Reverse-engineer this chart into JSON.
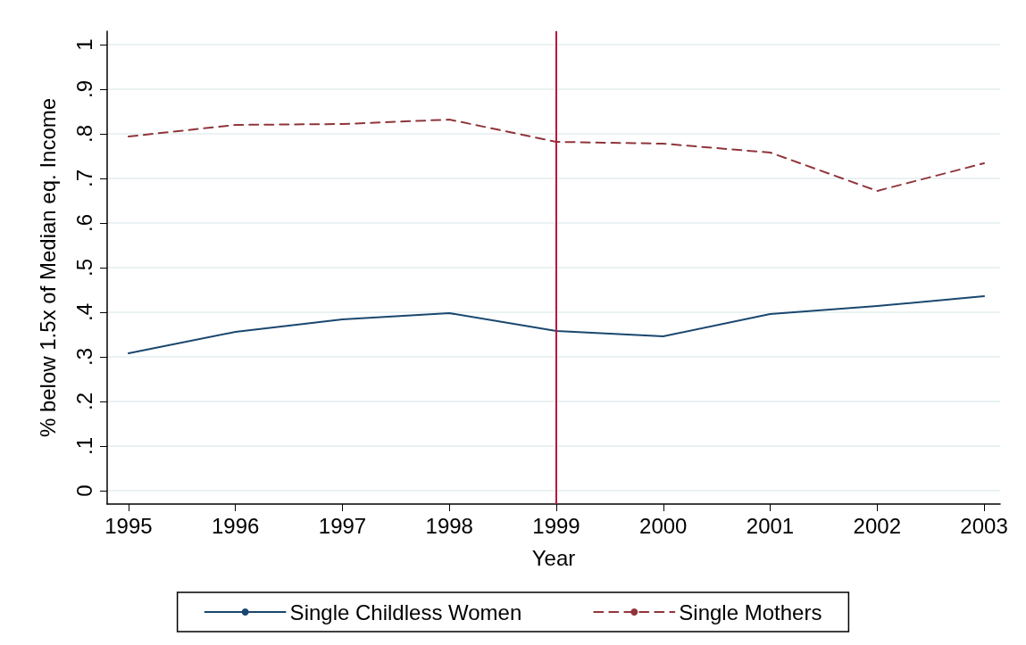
{
  "chart_data": {
    "type": "line",
    "xlabel": "Year",
    "ylabel": "% below 1.5x of Median eq. Income",
    "x": [
      1995,
      1996,
      1997,
      1998,
      1999,
      2000,
      2001,
      2002,
      2003
    ],
    "series": [
      {
        "name": "Single Childless Women",
        "color": "#1a476f",
        "line_style": "solid",
        "values": [
          0.308,
          0.356,
          0.384,
          0.398,
          0.358,
          0.346,
          0.396,
          0.414,
          0.436
        ]
      },
      {
        "name": "Single Mothers",
        "color": "#90353b",
        "line_style": "dashed",
        "values": [
          0.794,
          0.82,
          0.822,
          0.832,
          0.782,
          0.778,
          0.758,
          0.672,
          0.734
        ]
      }
    ],
    "xlim": [
      1994.8,
      2003.15
    ],
    "xticks": [
      1995,
      1996,
      1997,
      1998,
      1999,
      2000,
      2001,
      2002,
      2003
    ],
    "ylim": [
      -0.03,
      1.03
    ],
    "yticks": [
      {
        "value": 0,
        "label": "0"
      },
      {
        "value": 0.1,
        "label": ".1"
      },
      {
        "value": 0.2,
        "label": ".2"
      },
      {
        "value": 0.3,
        "label": ".3"
      },
      {
        "value": 0.4,
        "label": ".4"
      },
      {
        "value": 0.5,
        "label": ".5"
      },
      {
        "value": 0.6,
        "label": ".6"
      },
      {
        "value": 0.7,
        "label": ".7"
      },
      {
        "value": 0.8,
        "label": ".8"
      },
      {
        "value": 0.9,
        "label": ".9"
      },
      {
        "value": 1,
        "label": "1"
      }
    ],
    "ref_lines": [
      {
        "axis": "x",
        "value": 1999,
        "color": "#c0103a"
      }
    ],
    "grid": "y",
    "legend": "bottom",
    "marker": "none"
  }
}
